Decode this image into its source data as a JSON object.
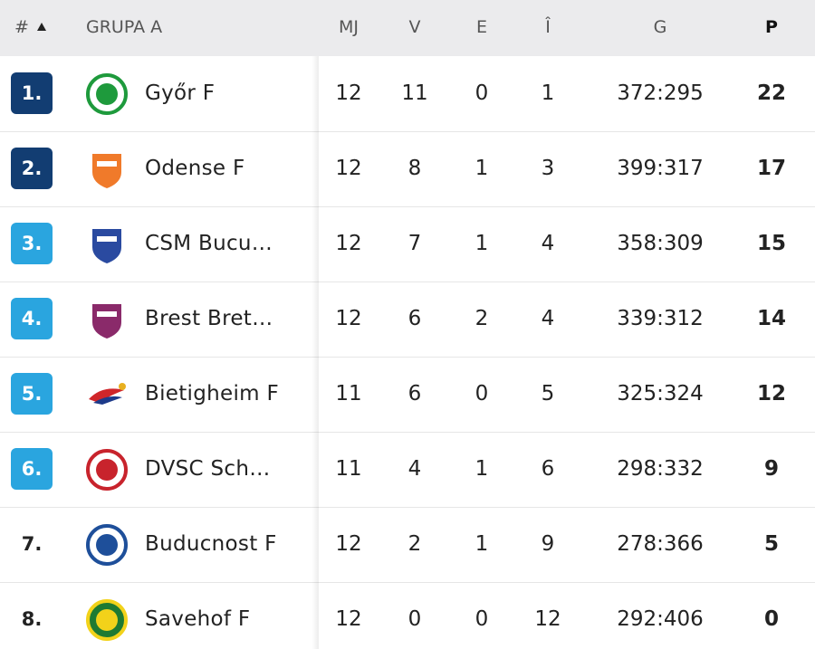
{
  "header": {
    "rank": "#",
    "group": "GRUPA A",
    "played": "MJ",
    "won": "V",
    "drawn": "E",
    "lost": "Î",
    "goals": "G",
    "points": "P"
  },
  "table": {
    "rows": [
      {
        "rank": "1.",
        "team": "Győr F",
        "played": 12,
        "won": 11,
        "drawn": 0,
        "lost": 1,
        "goals": "372:295",
        "points": 22
      },
      {
        "rank": "2.",
        "team": "Odense F",
        "played": 12,
        "won": 8,
        "drawn": 1,
        "lost": 3,
        "goals": "399:317",
        "points": 17
      },
      {
        "rank": "3.",
        "team": "CSM Bucu…",
        "played": 12,
        "won": 7,
        "drawn": 1,
        "lost": 4,
        "goals": "358:309",
        "points": 15
      },
      {
        "rank": "4.",
        "team": "Brest Bret…",
        "played": 12,
        "won": 6,
        "drawn": 2,
        "lost": 4,
        "goals": "339:312",
        "points": 14
      },
      {
        "rank": "5.",
        "team": "Bietigheim F",
        "played": 11,
        "won": 6,
        "drawn": 0,
        "lost": 5,
        "goals": "325:324",
        "points": 12
      },
      {
        "rank": "6.",
        "team": "DVSC Sch…",
        "played": 11,
        "won": 4,
        "drawn": 1,
        "lost": 6,
        "goals": "298:332",
        "points": 9
      },
      {
        "rank": "7.",
        "team": "Buducnost F",
        "played": 12,
        "won": 2,
        "drawn": 1,
        "lost": 9,
        "goals": "278:366",
        "points": 5
      },
      {
        "rank": "8.",
        "team": "Savehof F",
        "played": 12,
        "won": 0,
        "drawn": 0,
        "lost": 12,
        "goals": "292:406",
        "points": 0
      }
    ]
  }
}
